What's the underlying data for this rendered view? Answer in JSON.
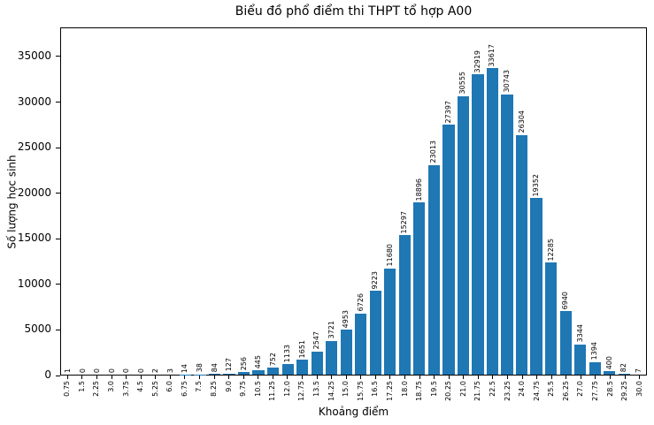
{
  "chart_data": {
    "type": "bar",
    "title": "Biểu đồ phổ điểm thi THPT tổ hợp A00",
    "xlabel": "Khoảng điểm",
    "ylabel": "Số lượng học sinh",
    "categories": [
      "0.75",
      "1.5",
      "2.25",
      "3.0",
      "3.75",
      "4.5",
      "5.25",
      "6.0",
      "6.75",
      "7.5",
      "8.25",
      "9.0",
      "9.75",
      "10.5",
      "11.25",
      "12.0",
      "12.75",
      "13.5",
      "14.25",
      "15.0",
      "15.75",
      "16.5",
      "17.25",
      "18.0",
      "18.75",
      "19.5",
      "20.25",
      "21.0",
      "21.75",
      "22.5",
      "23.25",
      "24.0",
      "24.75",
      "25.5",
      "26.25",
      "27.0",
      "27.75",
      "28.5",
      "29.25",
      "30.0"
    ],
    "values": [
      1,
      0,
      0,
      0,
      0,
      0,
      2,
      3,
      14,
      38,
      84,
      127,
      256,
      445,
      752,
      1133,
      1651,
      2547,
      3721,
      4953,
      6726,
      9223,
      11680,
      15297,
      18896,
      23013,
      27397,
      30555,
      32919,
      33617,
      30743,
      26304,
      19352,
      12285,
      6940,
      3344,
      1394,
      400,
      82,
      7
    ],
    "bar_labels_shown": true,
    "bar_color": "#1f77b4",
    "ylim": [
      0,
      38000
    ],
    "yticks": [
      0,
      5000,
      10000,
      15000,
      20000,
      25000,
      30000,
      35000
    ],
    "grid": false,
    "legend_position": "none"
  }
}
